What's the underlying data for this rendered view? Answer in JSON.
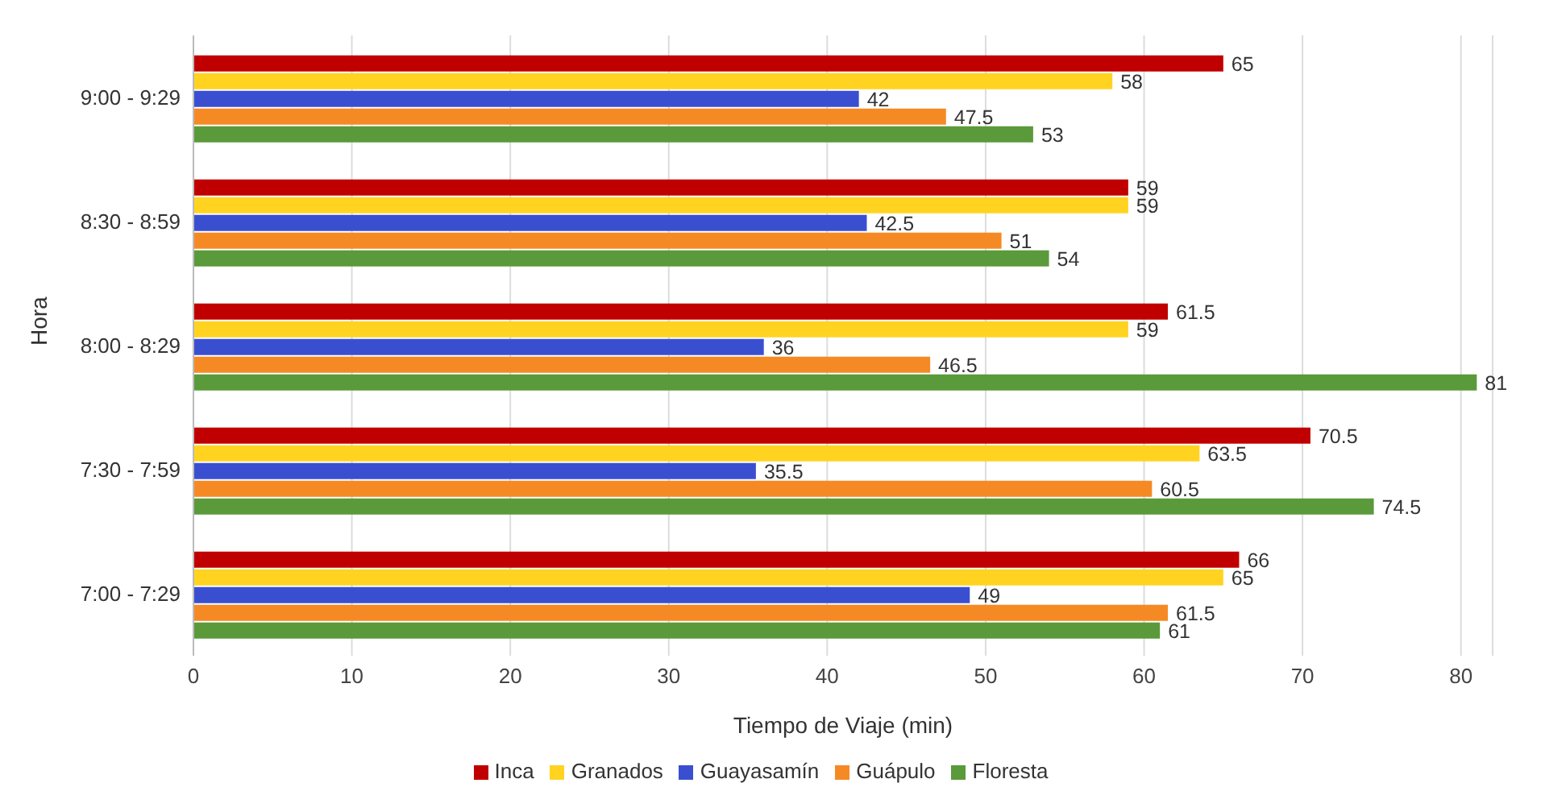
{
  "chart_data": {
    "type": "bar",
    "orientation": "horizontal",
    "xlabel": "Tiempo de Viaje (min)",
    "ylabel": "Hora",
    "categories": [
      "9:00 - 9:29",
      "8:30 - 8:59",
      "8:00 - 8:29",
      "7:30 - 7:59",
      "7:00 - 7:29"
    ],
    "series": [
      {
        "name": "Inca",
        "color": "#c00000",
        "values": [
          65,
          59,
          61.5,
          70.5,
          66
        ]
      },
      {
        "name": "Granados",
        "color": "#ffd320",
        "values": [
          58,
          59,
          59,
          63.5,
          65
        ]
      },
      {
        "name": "Guayasamín",
        "color": "#3a4fd0",
        "values": [
          42,
          42.5,
          36,
          35.5,
          49
        ]
      },
      {
        "name": "Guápulo",
        "color": "#f58a25",
        "values": [
          47.5,
          51,
          46.5,
          60.5,
          61.5
        ]
      },
      {
        "name": "Floresta",
        "color": "#5a9a3a",
        "values": [
          53,
          54,
          81,
          74.5,
          61
        ]
      }
    ],
    "xlim": [
      0,
      82
    ],
    "xticks": [
      0,
      10,
      20,
      30,
      40,
      50,
      60,
      70,
      80
    ],
    "grid": "x",
    "legend": "bottom",
    "data_labels": true
  }
}
